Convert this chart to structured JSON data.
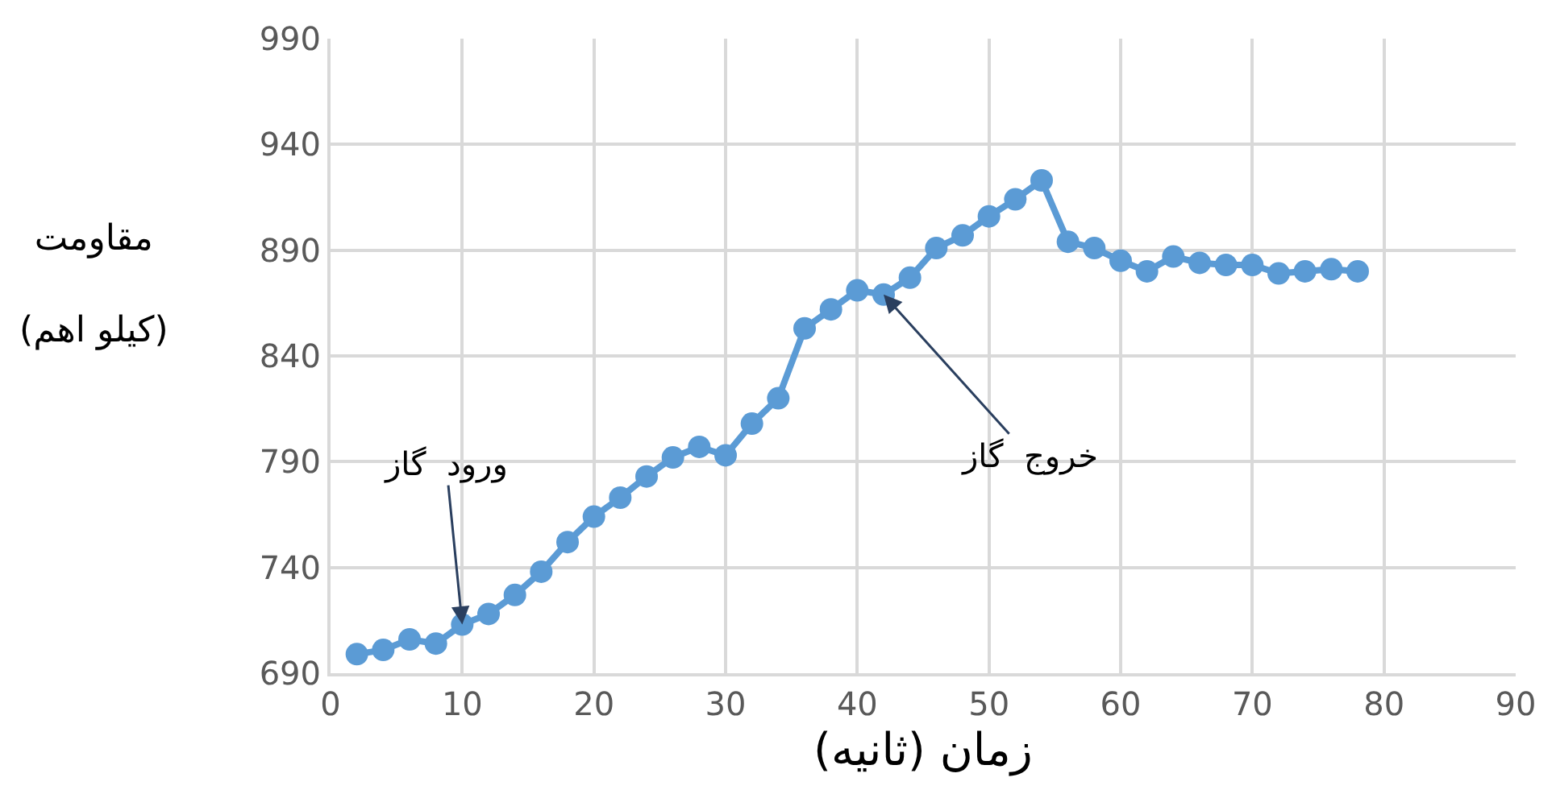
{
  "chart_data": {
    "type": "line",
    "xlabel": "زمان (ثانیه)",
    "ylabel": "مقاومت\n(کیلو اهم)",
    "x": [
      2,
      4,
      6,
      8,
      10,
      12,
      14,
      16,
      18,
      20,
      22,
      24,
      26,
      28,
      30,
      32,
      34,
      36,
      38,
      40,
      42,
      44,
      46,
      48,
      50,
      52,
      54,
      56,
      58,
      60,
      62,
      64,
      66,
      68,
      70,
      72,
      74,
      76,
      78
    ],
    "series": [
      {
        "color": "#5b9bd5",
        "values": [
          699,
          701,
          706,
          704,
          713,
          718,
          727,
          738,
          752,
          764,
          773,
          783,
          792,
          797,
          793,
          808,
          820,
          853,
          862,
          871,
          869,
          877,
          891,
          897,
          906,
          914,
          923,
          894,
          891,
          885,
          880,
          887,
          884,
          883,
          883,
          879,
          880,
          881,
          880
        ]
      }
    ],
    "xlim": [
      0,
      90
    ],
    "xticks": [
      0,
      10,
      20,
      30,
      40,
      50,
      60,
      70,
      80,
      90
    ],
    "ylim": [
      690,
      990
    ],
    "yticks": [
      690,
      740,
      790,
      840,
      890,
      940,
      990
    ],
    "grid": true,
    "marker": "circle",
    "line_style": "solid",
    "annotations": [
      {
        "text": "ورود  گاز",
        "x": 10,
        "y": 713
      },
      {
        "text": "خروج  گاز",
        "x": 42,
        "y": 869
      }
    ]
  }
}
